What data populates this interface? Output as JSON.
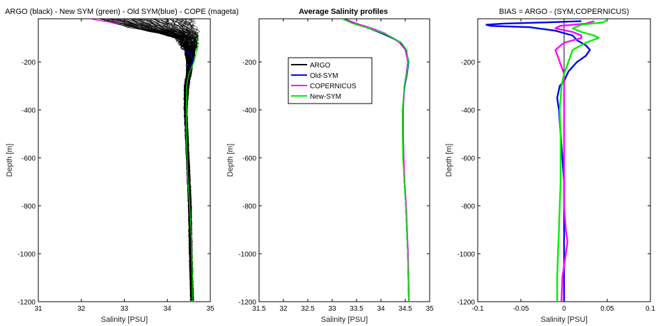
{
  "chart_data": [
    {
      "type": "line",
      "title": "ARGO (black) - New SYM (green) - Old SYM(blue) - COPE (mageta)",
      "xlabel": "Salinity [PSU]",
      "ylabel": "Depth [m]",
      "xlim": [
        31,
        35
      ],
      "ylim": [
        -1200,
        -20
      ],
      "xticks": [
        31,
        32,
        33,
        34,
        35
      ],
      "xtick_labels": [
        "31",
        "32",
        "33",
        "34",
        "35"
      ],
      "yticks": [
        -200,
        -400,
        -600,
        -800,
        -1000,
        -1200
      ],
      "ytick_labels": [
        "-200",
        "-400",
        "-600",
        "-800",
        "-1000",
        "-1200"
      ],
      "grid": false,
      "ensemble": {
        "name": "ARGO",
        "color": "#000000",
        "depth": [
          -20,
          -40,
          -60,
          -80,
          -100,
          -150,
          -200,
          -250,
          -300,
          -400,
          -600,
          -800,
          -1000,
          -1200
        ],
        "min": [
          32.4,
          32.8,
          33.2,
          33.8,
          34.2,
          34.4,
          34.45,
          34.45,
          34.4,
          34.4,
          34.45,
          34.5,
          34.52,
          34.55
        ],
        "max": [
          34.6,
          34.6,
          34.65,
          34.7,
          34.7,
          34.65,
          34.6,
          34.55,
          34.5,
          34.45,
          34.5,
          34.55,
          34.57,
          34.6
        ]
      },
      "series": [
        {
          "name": "New SYM",
          "color": "#00ee00",
          "depth": [
            -100,
            -130,
            -160,
            -200,
            -250,
            -300,
            -400,
            -500,
            -600,
            -700,
            -800,
            -900,
            -1000,
            -1100,
            -1200
          ],
          "values": [
            34.68,
            34.72,
            34.68,
            34.62,
            34.5,
            34.45,
            34.44,
            34.44,
            34.46,
            34.48,
            34.52,
            34.55,
            34.57,
            34.58,
            34.58
          ]
        },
        {
          "name": "Old SYM",
          "color": "#0000ee",
          "depth": [
            -150,
            -170,
            -200,
            -230
          ],
          "values": [
            34.4,
            34.55,
            34.6,
            34.5
          ]
        },
        {
          "name": "COPE",
          "color": "#ff00ff",
          "depth": [
            -20,
            -30,
            -40
          ],
          "values": [
            32.2,
            32.5,
            32.9
          ]
        }
      ]
    },
    {
      "type": "line",
      "title": "Average Salinity profiles",
      "xlabel": "Salinity [PSU]",
      "ylabel": "Depth [m]",
      "xlim": [
        31.5,
        35
      ],
      "ylim": [
        -1200,
        -20
      ],
      "xticks": [
        31.5,
        32,
        32.5,
        33,
        33.5,
        34,
        34.5,
        35
      ],
      "xtick_labels": [
        "31.5",
        "32",
        "32.5",
        "33",
        "33.5",
        "34",
        "34.5",
        "35"
      ],
      "yticks": [
        -200,
        -400,
        -600,
        -800,
        -1000,
        -1200
      ],
      "ytick_labels": [
        "-200",
        "-400",
        "-600",
        "-800",
        "-1000",
        "-1200"
      ],
      "grid": false,
      "legend": {
        "placement": "upper-center",
        "entries": [
          "ARGO",
          "Old-SYM",
          "COPERNICUS",
          "New-SYM"
        ]
      },
      "series": [
        {
          "name": "ARGO",
          "color": "#000000",
          "depth": [
            -20,
            -40,
            -60,
            -80,
            -100,
            -120,
            -150,
            -200,
            -250,
            -300,
            -400,
            -500,
            -600,
            -700,
            -800,
            -900,
            -1000,
            -1100,
            -1200
          ],
          "values": [
            33.25,
            33.5,
            33.8,
            34.05,
            34.25,
            34.42,
            34.52,
            34.55,
            34.52,
            34.48,
            34.45,
            34.45,
            34.46,
            34.48,
            34.51,
            34.53,
            34.55,
            34.56,
            34.57
          ]
        },
        {
          "name": "Old-SYM",
          "color": "#0000ee",
          "depth": [
            -20,
            -40,
            -60,
            -80,
            -100,
            -120,
            -150,
            -200,
            -250,
            -300,
            -400,
            -500,
            -600,
            -700,
            -800,
            -900,
            -1000,
            -1100,
            -1200
          ],
          "values": [
            33.25,
            33.45,
            33.75,
            34.0,
            34.22,
            34.4,
            34.52,
            34.57,
            34.54,
            34.49,
            34.45,
            34.45,
            34.46,
            34.48,
            34.51,
            34.53,
            34.55,
            34.56,
            34.57
          ]
        },
        {
          "name": "COPERNICUS",
          "color": "#ff00ff",
          "depth": [
            -20,
            -40,
            -60,
            -80,
            -100,
            -120,
            -150,
            -200,
            -250,
            -300,
            -400,
            -500,
            -600,
            -700,
            -800,
            -900,
            -1000,
            -1100,
            -1200
          ],
          "values": [
            33.22,
            33.5,
            33.82,
            34.08,
            34.24,
            34.38,
            34.5,
            34.55,
            34.52,
            34.48,
            34.46,
            34.46,
            34.47,
            34.49,
            34.52,
            34.54,
            34.56,
            34.57,
            34.58
          ]
        },
        {
          "name": "New-SYM",
          "color": "#00ee00",
          "depth": [
            -20,
            -40,
            -60,
            -80,
            -100,
            -120,
            -150,
            -200,
            -250,
            -300,
            -400,
            -500,
            -600,
            -700,
            -800,
            -900,
            -1000,
            -1100,
            -1200
          ],
          "values": [
            33.2,
            33.42,
            33.75,
            34.05,
            34.25,
            34.42,
            34.53,
            34.56,
            34.53,
            34.48,
            34.44,
            34.44,
            34.45,
            34.48,
            34.51,
            34.53,
            34.55,
            34.56,
            34.57
          ]
        }
      ]
    },
    {
      "type": "line",
      "title": "BIAS = ARGO - (SYM,COPERNICUS)",
      "xlabel": "Salinity [PSU]",
      "ylabel": "Depth [m]",
      "xlim": [
        -0.1,
        0.1
      ],
      "ylim": [
        -1200,
        -20
      ],
      "xticks": [
        -0.1,
        -0.05,
        0,
        0.05,
        0.1
      ],
      "xtick_labels": [
        "-0.1",
        "-0.05",
        "0",
        "0.05",
        "0.1"
      ],
      "yticks": [
        -200,
        -400,
        -600,
        -800,
        -1000,
        -1200
      ],
      "ytick_labels": [
        "-200",
        "-400",
        "-600",
        "-800",
        "-1000",
        "-1200"
      ],
      "grid": false,
      "zero_line": true,
      "series": [
        {
          "name": "Old-SYM",
          "color": "#0000ee",
          "depth": [
            -30,
            -35,
            -40,
            -45,
            -50,
            -55,
            -70,
            -90,
            -110,
            -130,
            -150,
            -175,
            -200,
            -240,
            -280,
            -300,
            -350,
            -400,
            -500,
            -600,
            -700,
            -800,
            -900,
            -1000,
            -1100,
            -1200
          ],
          "values": [
            0.02,
            -0.02,
            -0.07,
            -0.09,
            -0.085,
            -0.04,
            -0.01,
            0.01,
            0.015,
            0.025,
            0.03,
            0.025,
            0.015,
            0.005,
            0.0,
            -0.005,
            -0.008,
            -0.006,
            -0.004,
            -0.002,
            0.0,
            0.0,
            0.0,
            0.0,
            0.0,
            0.0
          ]
        },
        {
          "name": "COPERNICUS",
          "color": "#ff00ff",
          "depth": [
            -30,
            -40,
            -50,
            -60,
            -75,
            -90,
            -100,
            -120,
            -150,
            -200,
            -250,
            -300,
            -400,
            -500,
            -600,
            -700,
            -800,
            -900,
            -950,
            -1000,
            -1100,
            -1200
          ],
          "values": [
            0.035,
            0.025,
            -0.005,
            -0.01,
            0.01,
            0.02,
            0.02,
            0.0,
            -0.01,
            -0.005,
            0.0,
            0.0,
            0.0,
            0.0,
            0.0,
            0.0,
            0.0,
            0.002,
            0.004,
            0.002,
            -0.002,
            -0.003
          ]
        },
        {
          "name": "New-SYM",
          "color": "#00ee00",
          "depth": [
            -25,
            -35,
            -45,
            -60,
            -75,
            -90,
            -100,
            -120,
            -150,
            -200,
            -250,
            -300,
            -400,
            -500,
            -600,
            -700,
            -800,
            -900,
            -1000,
            -1100,
            -1200
          ],
          "values": [
            0.05,
            0.045,
            0.02,
            0.01,
            0.02,
            0.035,
            0.04,
            0.025,
            0.01,
            0.005,
            0.0,
            -0.003,
            -0.005,
            -0.004,
            -0.004,
            -0.004,
            -0.005,
            -0.006,
            -0.007,
            -0.008,
            -0.008
          ]
        }
      ]
    }
  ]
}
